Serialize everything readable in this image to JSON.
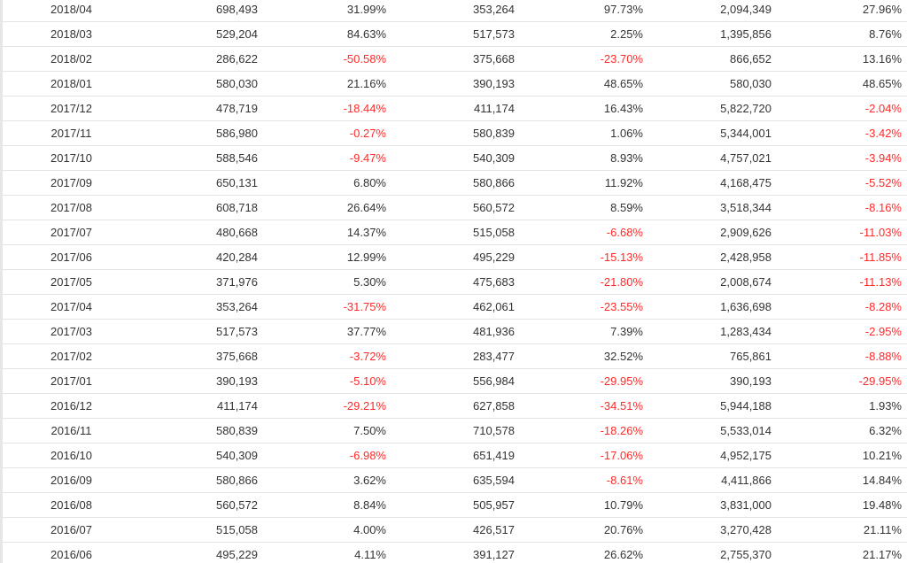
{
  "colors": {
    "negative": "#ff2a2a",
    "text": "#333333",
    "row_border": "#e4e4e4"
  },
  "table": {
    "rows": [
      [
        "2018/04",
        "698,493",
        "31.99%",
        "353,264",
        "97.73%",
        "2,094,349",
        "27.96%"
      ],
      [
        "2018/03",
        "529,204",
        "84.63%",
        "517,573",
        "2.25%",
        "1,395,856",
        "8.76%"
      ],
      [
        "2018/02",
        "286,622",
        "-50.58%",
        "375,668",
        "-23.70%",
        "866,652",
        "13.16%"
      ],
      [
        "2018/01",
        "580,030",
        "21.16%",
        "390,193",
        "48.65%",
        "580,030",
        "48.65%"
      ],
      [
        "2017/12",
        "478,719",
        "-18.44%",
        "411,174",
        "16.43%",
        "5,822,720",
        "-2.04%"
      ],
      [
        "2017/11",
        "586,980",
        "-0.27%",
        "580,839",
        "1.06%",
        "5,344,001",
        "-3.42%"
      ],
      [
        "2017/10",
        "588,546",
        "-9.47%",
        "540,309",
        "8.93%",
        "4,757,021",
        "-3.94%"
      ],
      [
        "2017/09",
        "650,131",
        "6.80%",
        "580,866",
        "11.92%",
        "4,168,475",
        "-5.52%"
      ],
      [
        "2017/08",
        "608,718",
        "26.64%",
        "560,572",
        "8.59%",
        "3,518,344",
        "-8.16%"
      ],
      [
        "2017/07",
        "480,668",
        "14.37%",
        "515,058",
        "-6.68%",
        "2,909,626",
        "-11.03%"
      ],
      [
        "2017/06",
        "420,284",
        "12.99%",
        "495,229",
        "-15.13%",
        "2,428,958",
        "-11.85%"
      ],
      [
        "2017/05",
        "371,976",
        "5.30%",
        "475,683",
        "-21.80%",
        "2,008,674",
        "-11.13%"
      ],
      [
        "2017/04",
        "353,264",
        "-31.75%",
        "462,061",
        "-23.55%",
        "1,636,698",
        "-8.28%"
      ],
      [
        "2017/03",
        "517,573",
        "37.77%",
        "481,936",
        "7.39%",
        "1,283,434",
        "-2.95%"
      ],
      [
        "2017/02",
        "375,668",
        "-3.72%",
        "283,477",
        "32.52%",
        "765,861",
        "-8.88%"
      ],
      [
        "2017/01",
        "390,193",
        "-5.10%",
        "556,984",
        "-29.95%",
        "390,193",
        "-29.95%"
      ],
      [
        "2016/12",
        "411,174",
        "-29.21%",
        "627,858",
        "-34.51%",
        "5,944,188",
        "1.93%"
      ],
      [
        "2016/11",
        "580,839",
        "7.50%",
        "710,578",
        "-18.26%",
        "5,533,014",
        "6.32%"
      ],
      [
        "2016/10",
        "540,309",
        "-6.98%",
        "651,419",
        "-17.06%",
        "4,952,175",
        "10.21%"
      ],
      [
        "2016/09",
        "580,866",
        "3.62%",
        "635,594",
        "-8.61%",
        "4,411,866",
        "14.84%"
      ],
      [
        "2016/08",
        "560,572",
        "8.84%",
        "505,957",
        "10.79%",
        "3,831,000",
        "19.48%"
      ],
      [
        "2016/07",
        "515,058",
        "4.00%",
        "426,517",
        "20.76%",
        "3,270,428",
        "21.11%"
      ],
      [
        "2016/06",
        "495,229",
        "4.11%",
        "391,127",
        "26.62%",
        "2,755,370",
        "21.17%"
      ]
    ]
  }
}
